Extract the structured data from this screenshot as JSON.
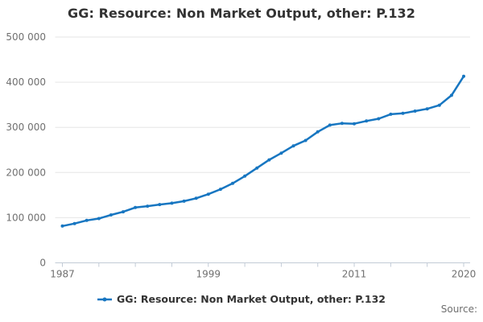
{
  "title": "GG: Resource: Non Market Output, other: P.132",
  "legend": {
    "label": "GG: Resource: Non Market Output, other: P.132"
  },
  "source_label": "Source:",
  "colors": {
    "line": "#1776c1",
    "grid": "#e6e6e6",
    "axis": "#c2cbd6",
    "tick_text": "#707070",
    "heading_text": "#333333"
  },
  "chart_data": {
    "type": "line",
    "title": "GG: Resource: Non Market Output, other: P.132",
    "xlabel": "",
    "ylabel": "",
    "grid": "horizontal",
    "legend_position": "bottom",
    "ylim": [
      0,
      500000
    ],
    "ytick_values": [
      0,
      100000,
      200000,
      300000,
      400000,
      500000
    ],
    "ytick_labels": [
      "0",
      "100 000",
      "200 000",
      "300 000",
      "400 000",
      "500 000"
    ],
    "tick_years": [
      1987,
      1990,
      1993,
      1996,
      1999,
      2002,
      2005,
      2008,
      2011,
      2014,
      2017,
      2020
    ],
    "labeled_years": [
      1987,
      1999,
      2011,
      2020
    ],
    "x": [
      1987,
      1988,
      1989,
      1990,
      1991,
      1992,
      1993,
      1994,
      1995,
      1996,
      1997,
      1998,
      1999,
      2000,
      2001,
      2002,
      2003,
      2004,
      2005,
      2006,
      2007,
      2008,
      2009,
      2010,
      2011,
      2012,
      2013,
      2014,
      2015,
      2016,
      2017,
      2018,
      2019,
      2020
    ],
    "series": [
      {
        "name": "GG: Resource: Non Market Output, other: P.132",
        "values": [
          81500,
          87000,
          94000,
          98000,
          106000,
          113000,
          122500,
          125500,
          129000,
          132000,
          136500,
          143000,
          152000,
          163000,
          176000,
          192000,
          210000,
          228000,
          243000,
          259000,
          271000,
          290000,
          305000,
          309000,
          308000,
          314000,
          319000,
          329000,
          331000,
          336000,
          341000,
          349000,
          371000,
          413000
        ]
      }
    ]
  }
}
